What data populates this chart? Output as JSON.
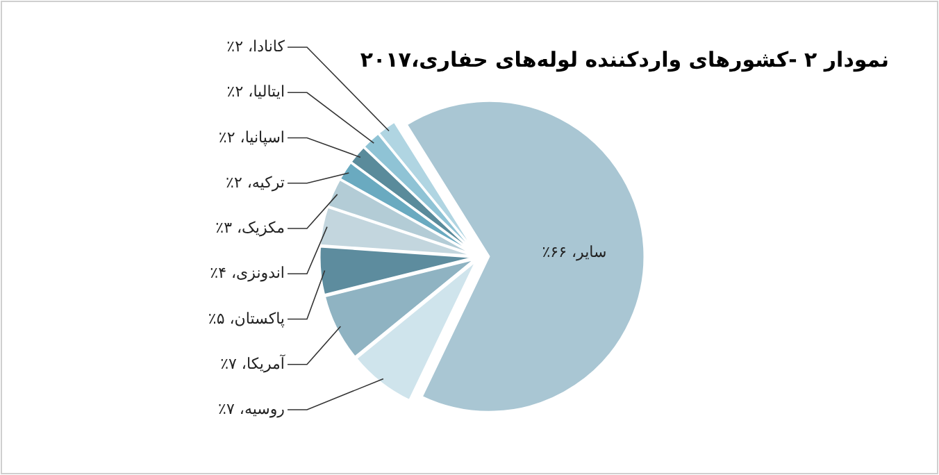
{
  "chart_data": {
    "type": "pie",
    "title": "نمودار ۲ -کشورهای واردکننده لوله‌های حفاری،۲۰۱۷",
    "categories": [
      "سایر",
      "روسیه",
      "آمریکا",
      "پاکستان",
      "اندونزی",
      "مکزیک",
      "ترکیه",
      "اسپانیا",
      "ایتالیا",
      "کانادا"
    ],
    "values": [
      66,
      7,
      7,
      5,
      4,
      3,
      2,
      2,
      2,
      2
    ],
    "value_labels": [
      "۶۶٪",
      "۷٪",
      "۷٪",
      "۵٪",
      "۴٪",
      "۳٪",
      "۲٪",
      "۲٪",
      "۲٪",
      "۲٪"
    ],
    "colors": [
      "#a9c6d3",
      "#cfe4ec",
      "#8fb3c2",
      "#5d8c9e",
      "#c3d6de",
      "#b3ccd6",
      "#6aaac0",
      "#5a8b9b",
      "#8fc3d5",
      "#b0d5e2"
    ]
  }
}
